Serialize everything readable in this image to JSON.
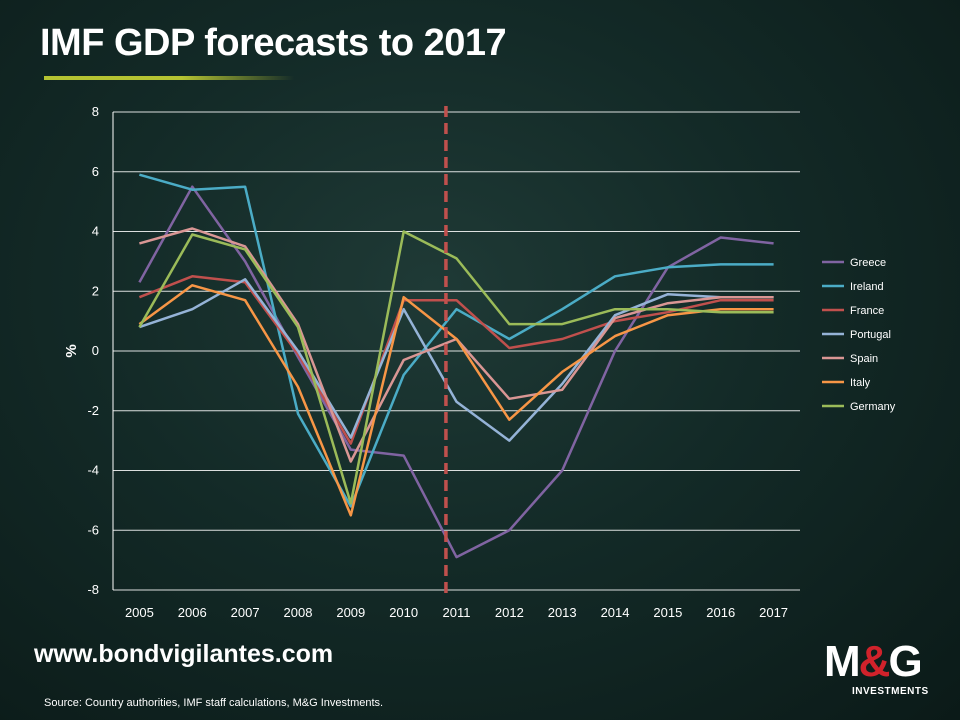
{
  "title": "IMF GDP forecasts to 2017",
  "website": "www.bondvigilantes.com",
  "source": "Source: Country authorities, IMF staff calculations, M&G Investments.",
  "logo": {
    "mark_left": "M",
    "mark_amp": "&",
    "mark_right": "G",
    "subtitle": "INVESTMENTS"
  },
  "chart_data": {
    "type": "line",
    "title": "",
    "xlabel": "",
    "ylabel": "%",
    "x": [
      "2005",
      "2006",
      "2007",
      "2008",
      "2009",
      "2010",
      "2011",
      "2012",
      "2013",
      "2014",
      "2015",
      "2016",
      "2017"
    ],
    "ylim": [
      -8,
      8
    ],
    "yticks": [
      8,
      6,
      4,
      2,
      0,
      -2,
      -4,
      -6,
      -8
    ],
    "grid": true,
    "legend_position": "right",
    "forecast_divider": {
      "x": "2011",
      "offset_years": -0.2,
      "color": "#c0504d"
    },
    "series": [
      {
        "name": "Greece",
        "color": "#8064a2",
        "values": [
          2.3,
          5.5,
          3.0,
          -0.2,
          -3.3,
          -3.5,
          -6.9,
          -6.0,
          -4.0,
          0.0,
          2.8,
          3.8,
          3.6
        ]
      },
      {
        "name": "Ireland",
        "color": "#4bacc6",
        "values": [
          5.9,
          5.4,
          5.5,
          -2.1,
          -5.2,
          -0.8,
          1.4,
          0.4,
          1.4,
          2.5,
          2.8,
          2.9,
          2.9
        ]
      },
      {
        "name": "France",
        "color": "#c0504d",
        "values": [
          1.8,
          2.5,
          2.3,
          -0.1,
          -3.1,
          1.7,
          1.7,
          0.1,
          0.4,
          1.0,
          1.3,
          1.7,
          1.7
        ]
      },
      {
        "name": "Portugal",
        "color": "#95b3d7",
        "values": [
          0.8,
          1.4,
          2.4,
          0.0,
          -2.9,
          1.4,
          -1.7,
          -3.0,
          -1.1,
          1.2,
          1.9,
          1.8,
          1.8
        ]
      },
      {
        "name": "Spain",
        "color": "#d99694",
        "values": [
          3.6,
          4.1,
          3.5,
          0.9,
          -3.7,
          -0.3,
          0.4,
          -1.6,
          -1.3,
          1.1,
          1.6,
          1.8,
          1.8
        ]
      },
      {
        "name": "Italy",
        "color": "#f79646",
        "values": [
          0.9,
          2.2,
          1.7,
          -1.2,
          -5.5,
          1.8,
          0.4,
          -2.3,
          -0.7,
          0.5,
          1.2,
          1.4,
          1.4
        ]
      },
      {
        "name": "Germany",
        "color": "#9bbb59",
        "values": [
          0.8,
          3.9,
          3.4,
          0.8,
          -5.1,
          4.0,
          3.1,
          0.9,
          0.9,
          1.4,
          1.4,
          1.3,
          1.3
        ]
      }
    ]
  }
}
